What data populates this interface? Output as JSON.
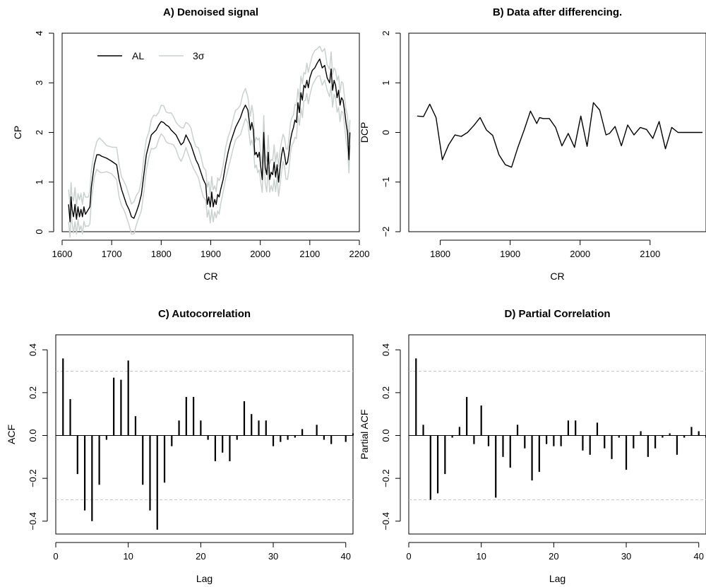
{
  "chart_data": [
    {
      "id": "A",
      "type": "line",
      "title": "A) Denoised signal",
      "xlabel": "CR",
      "ylabel": "CP",
      "xlim": [
        1600,
        2200
      ],
      "ylim": [
        0,
        4
      ],
      "xticks": [
        1600,
        1700,
        1800,
        1900,
        2000,
        2100,
        2200
      ],
      "yticks": [
        0,
        1,
        2,
        3,
        4
      ],
      "legend": {
        "placement": "top-left",
        "entries": [
          "AL",
          "3σ"
        ]
      },
      "series": [
        {
          "name": "AL",
          "color": "#000000",
          "x": [
            1613,
            1616,
            1618,
            1620,
            1623,
            1626,
            1629,
            1632,
            1635,
            1638,
            1641,
            1644,
            1647,
            1650,
            1653,
            1656,
            1659,
            1665,
            1670,
            1675,
            1680,
            1690,
            1700,
            1710,
            1715,
            1720,
            1725,
            1730,
            1735,
            1740,
            1745,
            1750,
            1755,
            1760,
            1765,
            1770,
            1775,
            1780,
            1785,
            1790,
            1795,
            1800,
            1805,
            1810,
            1815,
            1820,
            1825,
            1830,
            1835,
            1840,
            1845,
            1850,
            1855,
            1860,
            1865,
            1870,
            1875,
            1880,
            1885,
            1890,
            1893,
            1896,
            1899,
            1902,
            1905,
            1908,
            1911,
            1914,
            1917,
            1920,
            1925,
            1930,
            1935,
            1940,
            1945,
            1950,
            1955,
            1960,
            1965,
            1970,
            1975,
            1980,
            1983,
            1986,
            1989,
            1992,
            1995,
            1998,
            2001,
            2004,
            2007,
            2010,
            2013,
            2016,
            2019,
            2022,
            2025,
            2028,
            2031,
            2034,
            2037,
            2040,
            2043,
            2046,
            2049,
            2052,
            2055,
            2058,
            2061,
            2064,
            2067,
            2070,
            2073,
            2076,
            2079,
            2082,
            2085,
            2088,
            2091,
            2094,
            2097,
            2100,
            2105,
            2110,
            2115,
            2120,
            2125,
            2130,
            2135,
            2140,
            2143,
            2146,
            2149,
            2152,
            2155,
            2158,
            2161,
            2164,
            2167,
            2170,
            2173,
            2176,
            2179,
            2181
          ],
          "y": [
            0.55,
            0.2,
            0.7,
            0.45,
            0.3,
            0.55,
            0.25,
            0.5,
            0.3,
            0.45,
            0.3,
            0.5,
            0.35,
            0.4,
            0.45,
            0.5,
            0.9,
            1.35,
            1.55,
            1.55,
            1.52,
            1.48,
            1.42,
            1.35,
            1.05,
            0.85,
            0.7,
            0.55,
            0.45,
            0.3,
            0.27,
            0.4,
            0.55,
            0.75,
            1.15,
            1.55,
            1.75,
            1.95,
            2.0,
            2.05,
            2.15,
            2.22,
            2.2,
            2.15,
            2.12,
            2.05,
            2.0,
            1.95,
            1.85,
            1.75,
            1.8,
            1.95,
            1.85,
            1.75,
            1.6,
            1.45,
            1.35,
            1.2,
            1.05,
            0.95,
            0.55,
            0.7,
            0.5,
            0.8,
            0.5,
            0.65,
            0.55,
            0.75,
            0.7,
            0.85,
            1.05,
            1.35,
            1.6,
            1.8,
            1.95,
            2.1,
            2.2,
            2.3,
            2.45,
            2.55,
            2.45,
            2.05,
            2.2,
            2.05,
            1.55,
            1.6,
            1.5,
            1.6,
            1.3,
            1.05,
            2.0,
            1.3,
            1.15,
            1.6,
            1.05,
            1.2,
            1.15,
            1.4,
            1.1,
            1.35,
            1.0,
            1.3,
            1.55,
            1.7,
            1.55,
            1.35,
            1.4,
            1.6,
            1.85,
            2.0,
            2.1,
            2.25,
            2.2,
            2.6,
            2.4,
            2.8,
            2.65,
            2.95,
            2.9,
            3.05,
            2.9,
            3.1,
            3.25,
            3.3,
            3.4,
            3.48,
            3.3,
            3.35,
            3.1,
            3.0,
            3.28,
            2.85,
            3.05,
            2.95,
            2.7,
            2.85,
            2.55,
            2.7,
            2.65,
            2.45,
            2.2,
            2.0,
            1.45,
            2.0
          ],
          "band": [
            0.3,
            0.3,
            0.3
          ]
        },
        {
          "name": "3σ",
          "color": "#c9d1cf"
        }
      ]
    },
    {
      "id": "B",
      "type": "line",
      "title": "B) Data after differencing.",
      "xlabel": "CR",
      "ylabel": "DCP",
      "xlim": [
        1755,
        2180
      ],
      "ylim": [
        -2,
        2
      ],
      "xticks": [
        1800,
        1900,
        2000,
        2100
      ],
      "yticks": [
        -2,
        -1,
        0,
        1,
        2
      ],
      "series": [
        {
          "name": "",
          "x": [
            1767,
            1776,
            1785,
            1794,
            1803,
            1812,
            1821,
            1830,
            1839,
            1848,
            1857,
            1866,
            1875,
            1884,
            1893,
            1902,
            1911,
            1920,
            1929,
            1938,
            1942,
            1947,
            1956,
            1965,
            1974,
            1983,
            1992,
            2001,
            2010,
            2019,
            2028,
            2037,
            2042,
            2050,
            2059,
            2068,
            2077,
            2086,
            2095,
            2104,
            2113,
            2122,
            2131,
            2140,
            2149,
            2158,
            2166,
            2175
          ],
          "y": [
            0.33,
            0.32,
            0.57,
            0.3,
            -0.55,
            -0.25,
            -0.05,
            -0.08,
            0.0,
            0.14,
            0.3,
            0.05,
            -0.06,
            -0.45,
            -0.65,
            -0.7,
            -0.3,
            0.05,
            0.43,
            0.18,
            0.3,
            0.28,
            0.28,
            0.1,
            -0.27,
            -0.02,
            -0.3,
            0.33,
            -0.28,
            0.6,
            0.45,
            -0.05,
            -0.02,
            0.12,
            -0.27,
            0.15,
            -0.05,
            0.1,
            0.06,
            -0.12,
            0.22,
            -0.33,
            0.1,
            0.0,
            0.0,
            0.0,
            0.0,
            0.0
          ]
        }
      ]
    },
    {
      "id": "C",
      "type": "bar",
      "title": "C) Autocorrelation",
      "xlabel": "Lag",
      "ylabel": "ACF",
      "xlim": [
        0,
        41
      ],
      "ylim": [
        -0.46,
        0.47
      ],
      "xticks": [
        0,
        10,
        20,
        30,
        40
      ],
      "yticks": [
        -0.4,
        -0.2,
        0.0,
        0.2,
        0.4
      ],
      "conf_limits": [
        0.3,
        -0.3
      ],
      "lags": [
        1,
        2,
        3,
        4,
        5,
        6,
        7,
        8,
        9,
        10,
        11,
        12,
        13,
        14,
        15,
        16,
        17,
        18,
        19,
        20,
        21,
        22,
        23,
        24,
        25,
        26,
        27,
        28,
        29,
        30,
        31,
        32,
        33,
        34,
        35,
        36,
        37,
        38,
        39,
        40,
        41
      ],
      "values": [
        0.36,
        0.17,
        -0.18,
        -0.35,
        -0.4,
        -0.23,
        -0.02,
        0.27,
        0.26,
        0.35,
        0.09,
        -0.23,
        -0.35,
        -0.44,
        -0.22,
        -0.05,
        0.07,
        0.18,
        0.18,
        0.07,
        -0.02,
        -0.12,
        -0.08,
        -0.12,
        -0.02,
        0.16,
        0.1,
        0.07,
        0.07,
        -0.05,
        -0.03,
        -0.02,
        -0.01,
        0.03,
        0.0,
        0.05,
        -0.02,
        -0.04,
        0.0,
        -0.03,
        0.01
      ]
    },
    {
      "id": "D",
      "type": "bar",
      "title": "D) Partial Correlation",
      "xlabel": "Lag",
      "ylabel": "Partial ACF",
      "xlim": [
        0,
        41
      ],
      "ylim": [
        -0.46,
        0.47
      ],
      "xticks": [
        0,
        10,
        20,
        30,
        40
      ],
      "yticks": [
        -0.4,
        -0.2,
        0.0,
        0.2,
        0.4
      ],
      "conf_limits": [
        0.3,
        -0.3
      ],
      "lags": [
        1,
        2,
        3,
        4,
        5,
        6,
        7,
        8,
        9,
        10,
        11,
        12,
        13,
        14,
        15,
        16,
        17,
        18,
        19,
        20,
        21,
        22,
        23,
        24,
        25,
        26,
        27,
        28,
        29,
        30,
        31,
        32,
        33,
        34,
        35,
        36,
        37,
        38,
        39,
        40,
        41
      ],
      "values": [
        0.36,
        0.05,
        -0.3,
        -0.27,
        -0.18,
        -0.01,
        0.04,
        0.18,
        -0.04,
        0.14,
        -0.05,
        -0.29,
        -0.1,
        -0.15,
        0.05,
        -0.06,
        -0.21,
        -0.17,
        -0.04,
        -0.05,
        -0.05,
        0.07,
        0.07,
        -0.07,
        -0.09,
        0.06,
        -0.06,
        -0.11,
        -0.01,
        -0.16,
        -0.06,
        0.02,
        -0.1,
        -0.06,
        -0.01,
        0.01,
        -0.09,
        -0.01,
        0.04,
        0.02,
        -0.01
      ]
    }
  ]
}
